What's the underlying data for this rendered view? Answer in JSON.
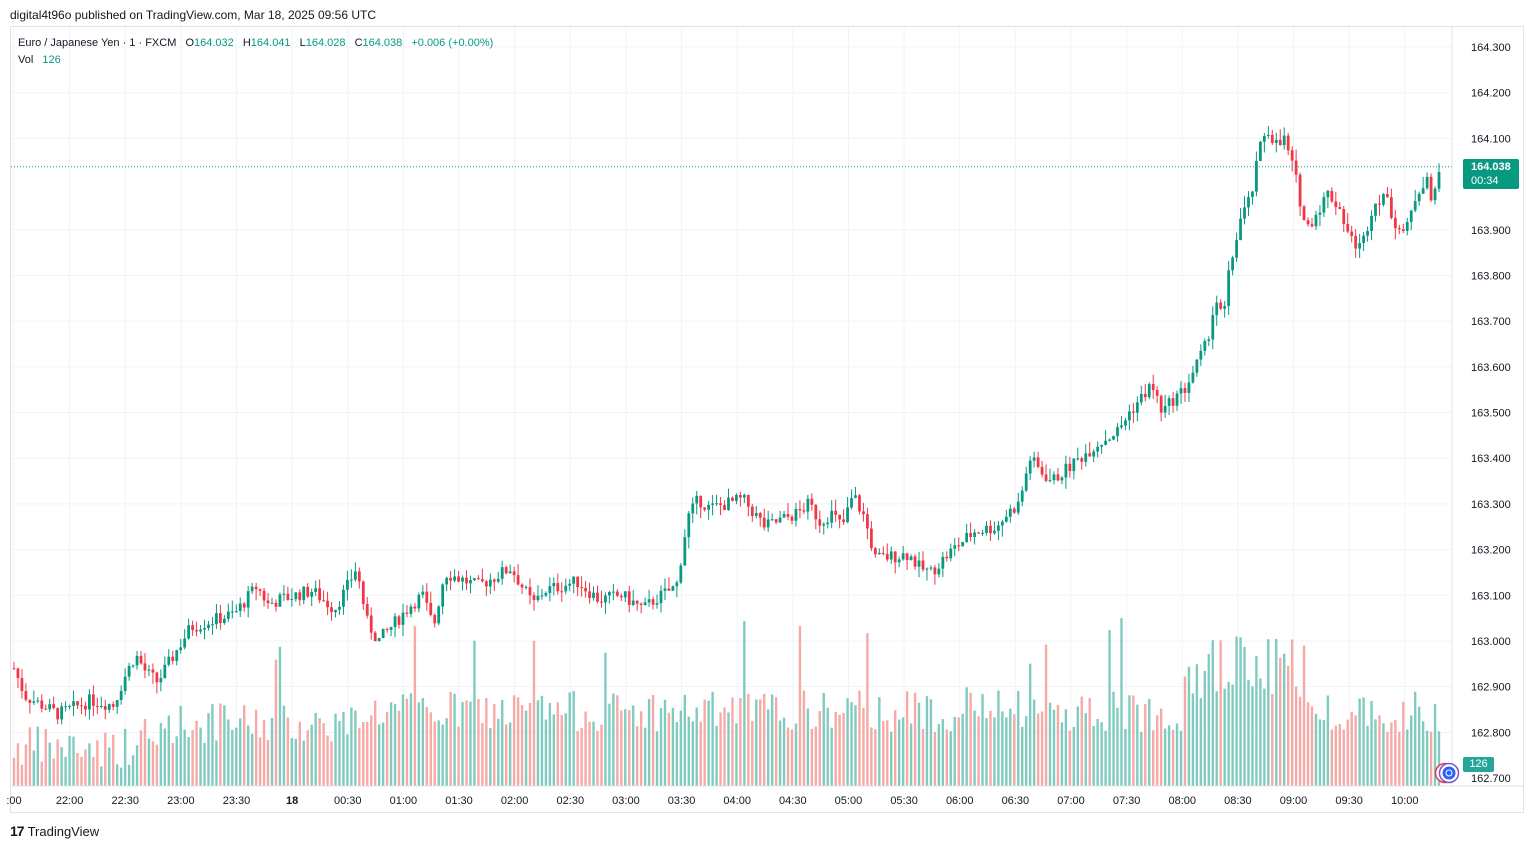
{
  "publish_line": "digital4t96o published on TradingView.com, Mar 18, 2025 09:56 UTC",
  "legend": {
    "symbol": "Euro / Japanese Yen · 1 · FXCM",
    "open_label": "O",
    "open": "164.032",
    "high_label": "H",
    "high": "164.041",
    "low_label": "L",
    "low": "164.028",
    "close_label": "C",
    "close": "164.038",
    "change": "+0.006 (+0.00%)",
    "vol_label": "Vol",
    "vol": "126"
  },
  "last_price": {
    "price": "164.038",
    "countdown": "00:34"
  },
  "vol_tag": "126",
  "footer": {
    "brand": "TradingView",
    "brand_mark": "17"
  },
  "colors": {
    "up": "#089981",
    "down": "#f23645",
    "vol_up": "#7fcbbf",
    "vol_down": "#f7a9a6",
    "grid": "#f0f3fa",
    "text": "#131722"
  },
  "chart_data": {
    "type": "candlestick",
    "title": "Euro / Japanese Yen · 1 · FXCM",
    "ylabel": "",
    "xlabel": "",
    "ylim": [
      162.68,
      164.34
    ],
    "y_ticks": [
      "164.300",
      "164.200",
      "164.100",
      "163.900",
      "163.800",
      "163.700",
      "163.600",
      "163.500",
      "163.400",
      "163.300",
      "163.200",
      "163.100",
      "163.000",
      "162.900",
      "162.800",
      "162.700"
    ],
    "x_ticks": [
      ":00",
      "22:00",
      "22:30",
      "23:00",
      "23:30",
      "18",
      "00:30",
      "01:00",
      "01:30",
      "02:00",
      "02:30",
      "03:00",
      "03:30",
      "04:00",
      "04:30",
      "05:00",
      "05:30",
      "06:00",
      "06:30",
      "07:00",
      "07:30",
      "08:00",
      "08:30",
      "09:00",
      "09:30",
      "10:00"
    ],
    "grid": true,
    "price_path": [
      [
        -1,
        162.94
      ],
      [
        0,
        162.88
      ],
      [
        3,
        162.84
      ],
      [
        6,
        162.87
      ],
      [
        8,
        162.86
      ],
      [
        9,
        162.92
      ],
      [
        10,
        162.97
      ],
      [
        11,
        162.93
      ],
      [
        12,
        162.91
      ],
      [
        15,
        163.03
      ],
      [
        19,
        163.06
      ],
      [
        21,
        163.12
      ],
      [
        22,
        163.08
      ],
      [
        23,
        163.09
      ],
      [
        26,
        163.11
      ],
      [
        28,
        163.07
      ],
      [
        29,
        163.11
      ],
      [
        30,
        163.16
      ],
      [
        31,
        163.04
      ],
      [
        32,
        163.0
      ],
      [
        35,
        163.08
      ],
      [
        36,
        163.1
      ],
      [
        37,
        163.03
      ],
      [
        38,
        163.15
      ],
      [
        41,
        163.12
      ],
      [
        44,
        163.16
      ],
      [
        46,
        163.08
      ],
      [
        47,
        163.11
      ],
      [
        50,
        163.13
      ],
      [
        52,
        163.09
      ],
      [
        54,
        163.1
      ],
      [
        56,
        163.07
      ],
      [
        57,
        163.09
      ],
      [
        59,
        163.12
      ],
      [
        60,
        163.27
      ],
      [
        61,
        163.31
      ],
      [
        62,
        163.29
      ],
      [
        65,
        163.31
      ],
      [
        66,
        163.28
      ],
      [
        67,
        163.25
      ],
      [
        70,
        163.28
      ],
      [
        71,
        163.3
      ],
      [
        72,
        163.26
      ],
      [
        73,
        163.28
      ],
      [
        74,
        163.25
      ],
      [
        75,
        163.32
      ],
      [
        76,
        163.27
      ],
      [
        77,
        163.18
      ],
      [
        80,
        163.19
      ],
      [
        81,
        163.16
      ],
      [
        82,
        163.15
      ],
      [
        84,
        163.2
      ],
      [
        86,
        163.24
      ],
      [
        88,
        163.25
      ],
      [
        89,
        163.28
      ],
      [
        90,
        163.3
      ],
      [
        91,
        163.4
      ],
      [
        92,
        163.37
      ],
      [
        93,
        163.35
      ],
      [
        95,
        163.39
      ],
      [
        97,
        163.43
      ],
      [
        99,
        163.46
      ],
      [
        100,
        163.5
      ],
      [
        101,
        163.53
      ],
      [
        102,
        163.56
      ],
      [
        103,
        163.5
      ],
      [
        104,
        163.53
      ],
      [
        105,
        163.55
      ],
      [
        106,
        163.6
      ],
      [
        107,
        163.65
      ],
      [
        107.8,
        163.75
      ],
      [
        108.5,
        163.7
      ],
      [
        109,
        163.8
      ],
      [
        110,
        163.92
      ],
      [
        111,
        163.97
      ],
      [
        112,
        164.1
      ],
      [
        112.5,
        164.12
      ],
      [
        113.5,
        164.08
      ],
      [
        114,
        164.1
      ],
      [
        115,
        164.02
      ],
      [
        116,
        163.9
      ],
      [
        117,
        163.94
      ],
      [
        118,
        163.98
      ],
      [
        119,
        163.95
      ],
      [
        120,
        163.88
      ],
      [
        121,
        163.86
      ],
      [
        122,
        163.95
      ],
      [
        123,
        163.98
      ],
      [
        124,
        163.92
      ],
      [
        125,
        163.89
      ],
      [
        126,
        163.98
      ],
      [
        127,
        164.02
      ],
      [
        127.4,
        163.94
      ],
      [
        128,
        164.04
      ]
    ],
    "candle_count": 360,
    "volume": {
      "current": 126,
      "max_visible": 190
    },
    "last_price": 164.038
  }
}
